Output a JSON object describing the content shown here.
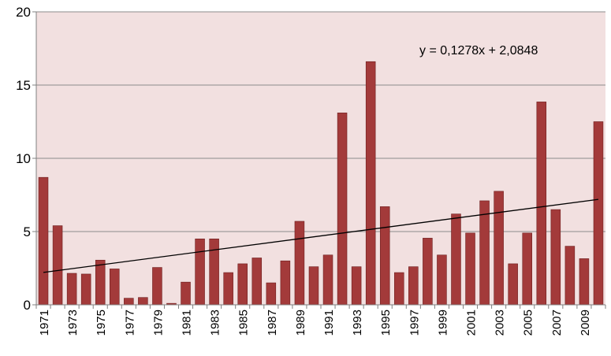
{
  "chart_data": {
    "type": "bar",
    "title": "",
    "xlabel": "",
    "ylabel": "",
    "ylim": [
      0,
      20
    ],
    "yticks": [
      0,
      5,
      10,
      15,
      20
    ],
    "grid": "horizontal",
    "categories": [
      "1971",
      "1972",
      "1973",
      "1974",
      "1975",
      "1976",
      "1977",
      "1978",
      "1979",
      "1980",
      "1981",
      "1982",
      "1983",
      "1984",
      "1985",
      "1986",
      "1987",
      "1988",
      "1989",
      "1990",
      "1991",
      "1992",
      "1993",
      "1994",
      "1995",
      "1996",
      "1997",
      "1998",
      "1999",
      "2000",
      "2001",
      "2002",
      "2003",
      "2004",
      "2005",
      "2006",
      "2007",
      "2008",
      "2009",
      "2010"
    ],
    "x_tick_labels": [
      "1971",
      "1973",
      "1975",
      "1977",
      "1979",
      "1981",
      "1983",
      "1985",
      "1987",
      "1989",
      "1991",
      "1993",
      "1995",
      "1997",
      "1999",
      "2001",
      "2003",
      "2005",
      "2007",
      "2009"
    ],
    "values": [
      8.7,
      5.4,
      2.15,
      2.1,
      3.05,
      2.45,
      0.45,
      0.5,
      2.55,
      0.1,
      1.55,
      4.5,
      4.5,
      2.2,
      2.8,
      3.2,
      1.5,
      3.0,
      5.7,
      2.6,
      3.4,
      13.1,
      2.6,
      16.6,
      6.7,
      2.2,
      2.6,
      4.55,
      3.4,
      6.2,
      4.9,
      7.1,
      7.75,
      2.8,
      4.9,
      13.85,
      6.5,
      4.0,
      3.15,
      12.5
    ],
    "trendline": {
      "slope": 0.1278,
      "intercept": 2.0848,
      "label": "y = 0,1278x + 2,0848"
    },
    "colors": {
      "bar_fill": "#a33a3a",
      "bar_stroke": "#6e1f1f",
      "plot_background": "#f2e0e0",
      "grid": "#8c8c8c",
      "trendline": "#000000"
    }
  }
}
